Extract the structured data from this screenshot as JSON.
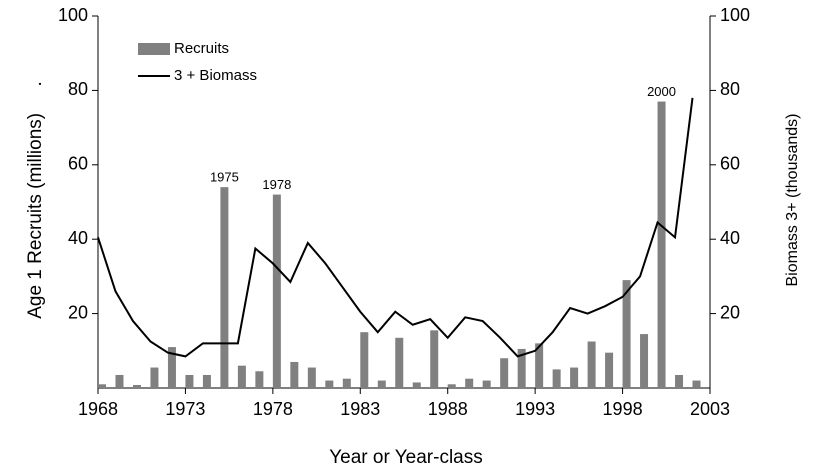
{
  "chart_data": {
    "type": "bar_line",
    "xlabel": "Year or Year-class",
    "ylabel": "Age 1 Recruits (millions)     .",
    "y2label": "Biomass 3+ (thousands)",
    "x": [
      1968,
      1969,
      1970,
      1971,
      1972,
      1973,
      1974,
      1975,
      1976,
      1977,
      1978,
      1979,
      1980,
      1981,
      1982,
      1983,
      1984,
      1985,
      1986,
      1987,
      1988,
      1989,
      1990,
      1991,
      1992,
      1993,
      1994,
      1995,
      1996,
      1997,
      1998,
      1999,
      2000,
      2001,
      2002
    ],
    "xlim": [
      1968,
      2003
    ],
    "xticks": [
      1968,
      1973,
      1978,
      1983,
      1988,
      1993,
      1998,
      2003
    ],
    "ylim": [
      0,
      100
    ],
    "yticks": [
      20,
      40,
      60,
      80,
      100
    ],
    "y2lim": [
      0,
      100
    ],
    "y2ticks": [
      20,
      40,
      60,
      80,
      100
    ],
    "legend": "upper left",
    "series": [
      {
        "name": "Recruits",
        "type": "bar",
        "color": "#808080",
        "values": [
          1,
          3.5,
          0.8,
          5.5,
          11,
          3.5,
          3.5,
          54,
          6,
          4.5,
          52,
          7,
          5.5,
          2,
          2.5,
          15,
          2,
          13.5,
          1.5,
          15.5,
          1,
          2.5,
          2,
          8,
          10.5,
          12,
          5,
          5.5,
          12.5,
          9.5,
          29,
          14.5,
          77,
          3.5,
          2
        ]
      },
      {
        "name": "3 + Biomass",
        "type": "line",
        "axis": "y2",
        "color": "#000000",
        "values": [
          40.5,
          26,
          18,
          12.5,
          9.5,
          8.5,
          12,
          12,
          12,
          37.5,
          33.5,
          28.5,
          39,
          33.5,
          27,
          20.5,
          15,
          20.5,
          17,
          18.5,
          13.5,
          19,
          18,
          13.5,
          8.5,
          10,
          15,
          21.5,
          20,
          22,
          24.5,
          30,
          44.5,
          40.5,
          78
        ]
      }
    ],
    "annotations": [
      "1975",
      "1978",
      "2000"
    ]
  }
}
